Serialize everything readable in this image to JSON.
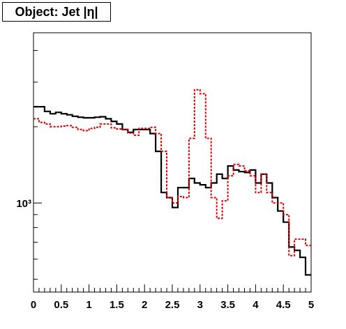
{
  "chart_data": {
    "type": "line",
    "title": "Object: Jet |η|",
    "xlabel": "",
    "ylabel": "",
    "xlim": [
      0,
      5
    ],
    "ylim": [
      445,
      4700
    ],
    "y_scale": "log",
    "grid": false,
    "legend": "none",
    "x_ticks": [
      "0",
      "0.5",
      "1",
      "1.5",
      "2",
      "2.5",
      "3",
      "3.5",
      "4",
      "4.5",
      "5"
    ],
    "y_tick_labels": [
      {
        "value": 1000,
        "label": "10³"
      }
    ],
    "bin_edges": [
      0,
      0.1,
      0.2,
      0.3,
      0.4,
      0.5,
      0.6,
      0.7,
      0.8,
      0.9,
      1.0,
      1.1,
      1.2,
      1.3,
      1.4,
      1.5,
      1.6,
      1.7,
      1.8,
      1.9,
      2.0,
      2.1,
      2.2,
      2.3,
      2.4,
      2.5,
      2.6,
      2.7,
      2.8,
      2.9,
      3.0,
      3.1,
      3.2,
      3.3,
      3.4,
      3.5,
      3.6,
      3.7,
      3.8,
      3.9,
      4.0,
      4.1,
      4.2,
      4.3,
      4.4,
      4.5,
      4.6,
      4.7,
      4.8,
      4.9,
      5.0
    ],
    "series": [
      {
        "name": "",
        "color": "#000000",
        "style": "solid",
        "values": [
          2400,
          2400,
          2300,
          2250,
          2280,
          2250,
          2230,
          2200,
          2180,
          2170,
          2170,
          2180,
          2190,
          2150,
          2100,
          2050,
          1950,
          1900,
          1950,
          1950,
          1950,
          1880,
          1600,
          1100,
          1050,
          960,
          1150,
          1150,
          1250,
          1200,
          1180,
          1150,
          1200,
          1300,
          1250,
          1400,
          1350,
          1330,
          1320,
          1350,
          1200,
          1300,
          1200,
          1050,
          930,
          840,
          670,
          650,
          610,
          520
        ]
      },
      {
        "name": "",
        "color": "#dd0000",
        "style": "dashed",
        "values": [
          2150,
          2080,
          2050,
          2000,
          2000,
          2010,
          2020,
          1990,
          1950,
          1930,
          1970,
          1990,
          2050,
          2050,
          1980,
          1960,
          1950,
          1890,
          1850,
          1970,
          1970,
          1990,
          1880,
          1600,
          1050,
          1000,
          1060,
          1050,
          1800,
          2800,
          2700,
          1800,
          1050,
          870,
          1020,
          1280,
          1420,
          1400,
          1340,
          1280,
          1100,
          1300,
          1100,
          1000,
          1000,
          900,
          620,
          720,
          720,
          680
        ]
      }
    ]
  }
}
